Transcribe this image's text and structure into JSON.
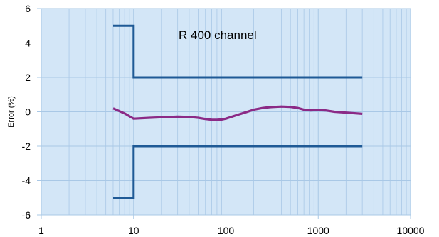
{
  "chart_data": {
    "type": "line",
    "title": "",
    "annotation": "R 400 channel",
    "xlabel": "",
    "ylabel": "Error (%)",
    "x_scale": "log",
    "xlim": [
      1,
      10000
    ],
    "ylim": [
      -6,
      6
    ],
    "x_ticks": [
      1,
      10,
      100,
      1000,
      10000
    ],
    "x_tick_labels": [
      "1",
      "10",
      "100",
      "1000",
      "10000"
    ],
    "y_ticks": [
      6,
      4,
      2,
      0,
      -2,
      -4,
      -6
    ],
    "y_tick_labels": [
      "6",
      "4",
      "2",
      "0",
      "-2",
      "-4",
      "-6"
    ],
    "grid": true,
    "colors": {
      "plot_background": "#d3e6f7",
      "grid": "#a9c8e6",
      "axis": "#a9c8e6",
      "limit": "#1f5a96",
      "measured": "#8b2a86"
    },
    "series": [
      {
        "role": "upper-limit",
        "x": [
          6,
          10,
          10,
          3000
        ],
        "y": [
          5,
          5,
          2,
          2
        ]
      },
      {
        "role": "lower-limit",
        "x": [
          6,
          10,
          10,
          3000
        ],
        "y": [
          -5,
          -5,
          -2,
          -2
        ]
      },
      {
        "role": "measured",
        "x": [
          6,
          8,
          10,
          15,
          20,
          30,
          40,
          50,
          60,
          70,
          80,
          90,
          100,
          130,
          160,
          200,
          250,
          300,
          400,
          500,
          600,
          700,
          800,
          1000,
          1200,
          1500,
          2000,
          3000
        ],
        "y": [
          0.2,
          -0.1,
          -0.4,
          -0.35,
          -0.32,
          -0.28,
          -0.3,
          -0.35,
          -0.42,
          -0.46,
          -0.47,
          -0.45,
          -0.4,
          -0.2,
          -0.05,
          0.12,
          0.22,
          0.27,
          0.3,
          0.28,
          0.22,
          0.12,
          0.08,
          0.1,
          0.08,
          0.0,
          -0.05,
          -0.12
        ]
      }
    ]
  }
}
